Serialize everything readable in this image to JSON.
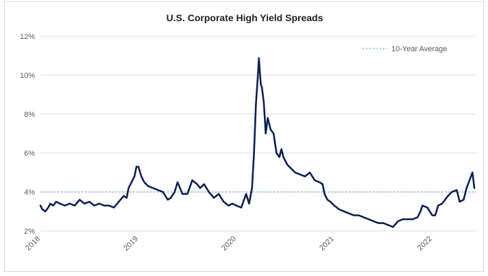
{
  "chart_data": {
    "type": "line",
    "title": "U.S. Corporate High Yield Spreads",
    "xlabel": "",
    "ylabel": "",
    "xlim": [
      2018.0,
      2022.45
    ],
    "ylim": [
      2,
      12
    ],
    "y_ticks": [
      "2%",
      "4%",
      "6%",
      "8%",
      "10%",
      "12%"
    ],
    "y_tick_values": [
      2,
      4,
      6,
      8,
      10,
      12
    ],
    "x_ticks": [
      "2018",
      "2019",
      "2020",
      "2021",
      "2022"
    ],
    "x_tick_values": [
      2018,
      2019,
      2020,
      2021,
      2022
    ],
    "grid": true,
    "legend_position": "top-right",
    "colors": {
      "series": "#0d1f4f",
      "average": "#9dc3e6",
      "grid": "#d9d9d9"
    },
    "series": [
      {
        "x": [
          2018.0,
          2018.02,
          2018.05,
          2018.08,
          2018.1,
          2018.13,
          2018.16,
          2018.2,
          2018.25,
          2018.3,
          2018.35,
          2018.4,
          2018.45,
          2018.5,
          2018.55,
          2018.6,
          2018.65,
          2018.7,
          2018.75,
          2018.8,
          2018.85,
          2018.88,
          2018.9,
          2018.93,
          2018.96,
          2018.98,
          2019.0,
          2019.03,
          2019.06,
          2019.1,
          2019.15,
          2019.2,
          2019.25,
          2019.3,
          2019.33,
          2019.37,
          2019.4,
          2019.45,
          2019.5,
          2019.55,
          2019.6,
          2019.63,
          2019.67,
          2019.72,
          2019.77,
          2019.82,
          2019.87,
          2019.92,
          2019.96,
          2020.0,
          2020.05,
          2020.1,
          2020.13,
          2020.16,
          2020.18,
          2020.2,
          2020.22,
          2020.23,
          2020.24,
          2020.25,
          2020.26,
          2020.28,
          2020.3,
          2020.32,
          2020.35,
          2020.38,
          2020.41,
          2020.44,
          2020.46,
          2020.48,
          2020.52,
          2020.56,
          2020.6,
          2020.65,
          2020.7,
          2020.75,
          2020.8,
          2020.85,
          2020.88,
          2020.9,
          2020.93,
          2020.96,
          2021.0,
          2021.05,
          2021.1,
          2021.15,
          2021.2,
          2021.25,
          2021.3,
          2021.35,
          2021.4,
          2021.45,
          2021.5,
          2021.55,
          2021.6,
          2021.65,
          2021.7,
          2021.75,
          2021.8,
          2021.85,
          2021.88,
          2021.9,
          2021.95,
          2022.0,
          2022.03,
          2022.06,
          2022.1,
          2022.13,
          2022.16,
          2022.2,
          2022.25,
          2022.28,
          2022.32,
          2022.35,
          2022.38,
          2022.41,
          2022.43
        ],
        "values": [
          3.3,
          3.1,
          3.0,
          3.2,
          3.4,
          3.3,
          3.5,
          3.4,
          3.3,
          3.4,
          3.3,
          3.6,
          3.4,
          3.5,
          3.3,
          3.4,
          3.3,
          3.3,
          3.2,
          3.5,
          3.8,
          3.7,
          4.2,
          4.5,
          4.8,
          5.3,
          5.3,
          4.8,
          4.5,
          4.3,
          4.2,
          4.1,
          4.0,
          3.6,
          3.7,
          4.0,
          4.5,
          3.9,
          3.9,
          4.6,
          4.4,
          4.2,
          4.4,
          4.0,
          3.7,
          3.9,
          3.5,
          3.3,
          3.4,
          3.3,
          3.2,
          3.9,
          3.4,
          4.2,
          6.0,
          8.5,
          10.0,
          10.87,
          10.2,
          9.5,
          9.4,
          8.6,
          7.0,
          7.8,
          7.2,
          7.0,
          6.0,
          5.8,
          6.2,
          5.8,
          5.4,
          5.2,
          5.0,
          4.9,
          4.8,
          5.0,
          4.6,
          4.5,
          4.4,
          3.9,
          3.6,
          3.5,
          3.3,
          3.1,
          3.0,
          2.9,
          2.8,
          2.8,
          2.7,
          2.6,
          2.5,
          2.4,
          2.4,
          2.3,
          2.2,
          2.5,
          2.6,
          2.6,
          2.6,
          2.7,
          3.0,
          3.3,
          3.2,
          2.8,
          2.8,
          3.3,
          3.4,
          3.6,
          3.8,
          4.0,
          4.1,
          3.5,
          3.6,
          4.2,
          4.6,
          5.0,
          4.2
        ]
      }
    ],
    "average": {
      "label": "10-Year Average",
      "value": 4.0
    }
  }
}
